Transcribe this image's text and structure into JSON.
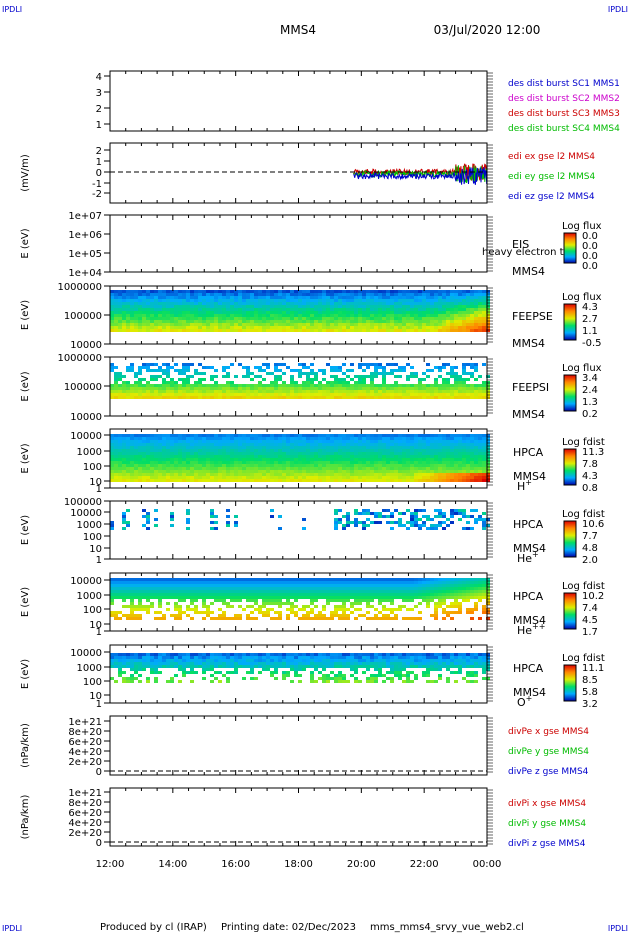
{
  "corner_marks": {
    "top_left": "IPDLI",
    "top_right": "IPDLI",
    "bottom_left": "IPDLI",
    "bottom_right": "IPDLI"
  },
  "header": {
    "spacecraft": "MMS4",
    "date": "03/Jul/2020 12:00"
  },
  "footer": {
    "producer": "Produced by cl (IRAP)",
    "printing_date": "Printing date: 02/Dec/2023",
    "file_name": "mms_mms4_srvy_vue_web2.cl"
  },
  "x_axis": {
    "ticks": [
      "12:00",
      "14:00",
      "16:00",
      "18:00",
      "20:00",
      "22:00",
      "00:00"
    ]
  },
  "colors": {
    "blue": "#0000cc",
    "magenta": "#cc00cc",
    "red": "#cc0000",
    "green": "#00bb00"
  },
  "chart_data": [
    {
      "id": "des",
      "type": "line",
      "ylabel": "",
      "yticks": [
        "4",
        "3",
        "2",
        "1"
      ],
      "ylim": [
        0.5,
        4.5
      ],
      "legend": [
        {
          "text": "des dist burst SC1 MMS1",
          "color": "#0000cc"
        },
        {
          "text": "des dist burst SC2 MMS2",
          "color": "#cc00cc"
        },
        {
          "text": "des dist burst SC3 MMS3",
          "color": "#cc0000"
        },
        {
          "text": "des dist burst SC4 MMS4",
          "color": "#00bb00"
        }
      ],
      "series": []
    },
    {
      "id": "edi",
      "type": "line",
      "ylabel": "(mV/m)",
      "yticks": [
        "2",
        "1",
        "0",
        "-1",
        "-2"
      ],
      "ylim": [
        -2.5,
        2.5
      ],
      "legend": [
        {
          "text": "edi ex gse l2 MMS4",
          "color": "#cc0000"
        },
        {
          "text": "edi ey gse l2 MMS4",
          "color": "#00bb00"
        },
        {
          "text": "edi ez gse l2 MMS4",
          "color": "#0000cc"
        }
      ],
      "data_start_hour": 19.75,
      "data_end_hour": 24
    },
    {
      "id": "eis",
      "type": "heatmap",
      "ylabel": "E (eV)",
      "yticks": [
        "1e+07",
        "1e+06",
        "1e+05",
        "1e+04"
      ],
      "ylim": [
        10000,
        10000000
      ],
      "yscale": "log",
      "labels": [
        "EIS",
        "MMS4"
      ],
      "overlay_label": "heavy electron to",
      "colorbar": {
        "title": "Log flux",
        "ticks": [
          "0.0",
          "0.0",
          "0.0",
          "0.0"
        ]
      }
    },
    {
      "id": "feepse",
      "type": "heatmap",
      "ylabel": "E (eV)",
      "yticks": [
        "1000000",
        "100000",
        "10000"
      ],
      "ylim": [
        10000,
        1000000
      ],
      "yscale": "log",
      "labels": [
        "FEEPSE",
        "MMS4"
      ],
      "colorbar": {
        "title": "Log flux",
        "ticks": [
          "4.3",
          "2.7",
          "1.1",
          "-0.5"
        ]
      }
    },
    {
      "id": "feepsi",
      "type": "heatmap",
      "ylabel": "E (eV)",
      "yticks": [
        "1000000",
        "100000",
        "10000"
      ],
      "ylim": [
        10000,
        1000000
      ],
      "yscale": "log",
      "labels": [
        "FEEPSI",
        "MMS4"
      ],
      "colorbar": {
        "title": "Log flux",
        "ticks": [
          "3.4",
          "2.4",
          "1.3",
          "0.2"
        ]
      }
    },
    {
      "id": "hpca_h",
      "type": "heatmap",
      "ylabel": "E (eV)",
      "yticks": [
        "10000",
        "1000",
        "100",
        "10",
        "1"
      ],
      "ylim": [
        1,
        30000
      ],
      "yscale": "log",
      "labels": [
        "HPCA",
        "MMS4"
      ],
      "species": "H",
      "charge": "+",
      "colorbar": {
        "title": "Log fdist",
        "ticks": [
          "11.3",
          "7.8",
          "4.3",
          "0.8"
        ]
      }
    },
    {
      "id": "hpca_he",
      "type": "heatmap",
      "ylabel": "E (eV)",
      "yticks": [
        "100000",
        "10000",
        "1000",
        "100",
        "10",
        "1"
      ],
      "ylim": [
        1,
        100000
      ],
      "yscale": "log",
      "labels": [
        "HPCA",
        "MMS4"
      ],
      "species": "He",
      "charge": "+",
      "colorbar": {
        "title": "Log fdist",
        "ticks": [
          "10.6",
          "7.7",
          "4.8",
          "2.0"
        ]
      }
    },
    {
      "id": "hpca_hepp",
      "type": "heatmap",
      "ylabel": "E (eV)",
      "yticks": [
        "10000",
        "1000",
        "100",
        "10",
        "1"
      ],
      "ylim": [
        1,
        30000
      ],
      "yscale": "log",
      "labels": [
        "HPCA",
        "MMS4"
      ],
      "species": "He",
      "charge": "++",
      "colorbar": {
        "title": "Log fdist",
        "ticks": [
          "10.2",
          "7.4",
          "4.5",
          "1.7"
        ]
      }
    },
    {
      "id": "hpca_o",
      "type": "heatmap",
      "ylabel": "E (eV)",
      "yticks": [
        "10000",
        "1000",
        "100",
        "10",
        "1"
      ],
      "ylim": [
        1,
        30000
      ],
      "yscale": "log",
      "labels": [
        "HPCA",
        "MMS4"
      ],
      "species": "O",
      "charge": "+",
      "colorbar": {
        "title": "Log fdist",
        "ticks": [
          "11.1",
          "8.5",
          "5.8",
          "3.2"
        ]
      }
    },
    {
      "id": "divpe",
      "type": "line",
      "ylabel": "(nPa/km)",
      "yticks": [
        "1e+21",
        "8e+20",
        "6e+20",
        "4e+20",
        "2e+20",
        "0"
      ],
      "ylim": [
        -1e+20,
        1.1e+21
      ],
      "legend": [
        {
          "text": "divPe x gse MMS4",
          "color": "#cc0000"
        },
        {
          "text": "divPe y gse MMS4",
          "color": "#00bb00"
        },
        {
          "text": "divPe z gse MMS4",
          "color": "#0000cc"
        }
      ]
    },
    {
      "id": "divpi",
      "type": "line",
      "ylabel": "(nPa/km)",
      "yticks": [
        "1e+21",
        "8e+20",
        "6e+20",
        "4e+20",
        "2e+20",
        "0"
      ],
      "ylim": [
        -1e+20,
        1.1e+21
      ],
      "legend": [
        {
          "text": "divPi x gse MMS4",
          "color": "#cc0000"
        },
        {
          "text": "divPi y gse MMS4",
          "color": "#00bb00"
        },
        {
          "text": "divPi z gse MMS4",
          "color": "#0000cc"
        }
      ]
    }
  ]
}
